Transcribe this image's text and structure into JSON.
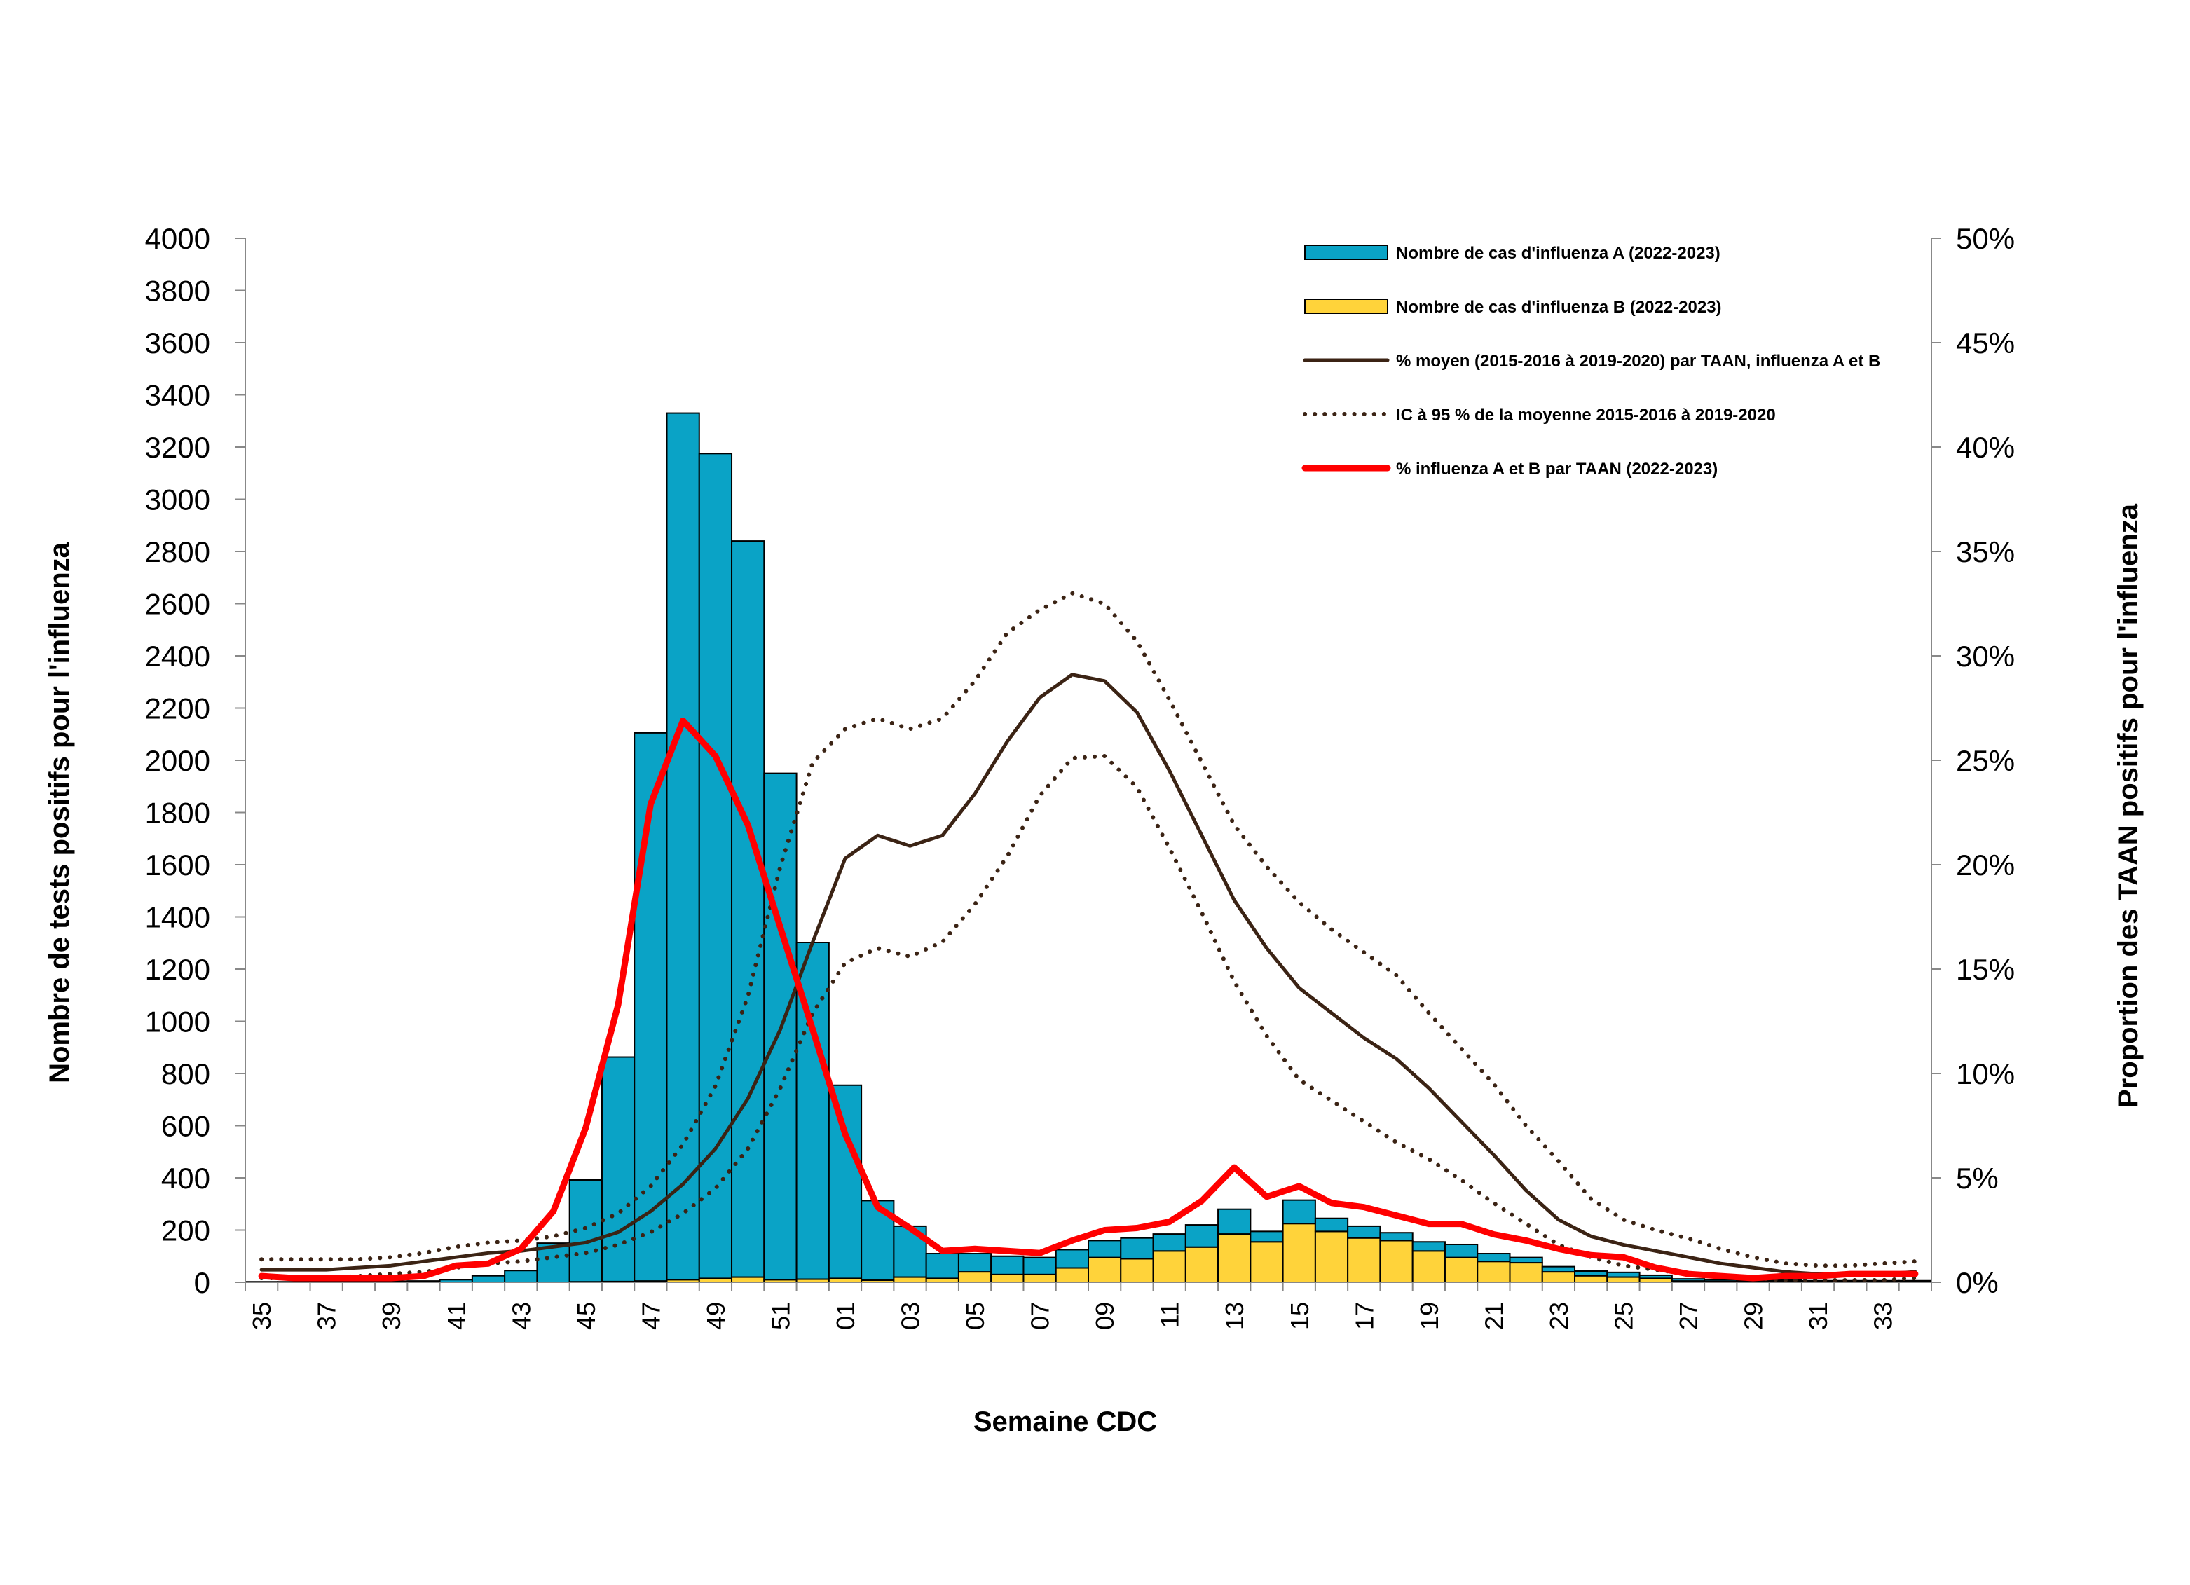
{
  "chart_data": {
    "type": "bar",
    "xlabel": "Semaine CDC",
    "ylabel": "Nombre de tests positifs pour l'influenza",
    "y2label": "Proportion des TAAN positifs pour l'influenza",
    "ylim": [
      0,
      4000
    ],
    "yticks": [
      0,
      200,
      400,
      600,
      800,
      1000,
      1200,
      1400,
      1600,
      1800,
      2000,
      2200,
      2400,
      2600,
      2800,
      3000,
      3200,
      3400,
      3600,
      3800,
      4000
    ],
    "y2lim": [
      0,
      0.5
    ],
    "y2ticks": [
      "0%",
      "5%",
      "10%",
      "15%",
      "20%",
      "25%",
      "30%",
      "35%",
      "40%",
      "45%",
      "50%"
    ],
    "stacked": true,
    "legend_position": "top-right",
    "grid": false,
    "weeks": [
      "35",
      "36",
      "37",
      "38",
      "39",
      "40",
      "41",
      "42",
      "43",
      "44",
      "45",
      "46",
      "47",
      "48",
      "49",
      "50",
      "51",
      "52",
      "01",
      "02",
      "03",
      "04",
      "05",
      "06",
      "07",
      "08",
      "09",
      "10",
      "11",
      "12",
      "13",
      "14",
      "15",
      "16",
      "17",
      "18",
      "19",
      "20",
      "21",
      "22",
      "23",
      "24",
      "25",
      "26",
      "27",
      "28",
      "29",
      "30",
      "31",
      "32",
      "33",
      "34"
    ],
    "week_labels": [
      "35",
      "37",
      "39",
      "41",
      "43",
      "45",
      "47",
      "49",
      "51",
      "01",
      "03",
      "05",
      "07",
      "09",
      "11",
      "13",
      "15",
      "17",
      "19",
      "21",
      "23",
      "25",
      "27",
      "29",
      "31",
      "33"
    ],
    "bar_series": [
      {
        "name": "Nombre de cas d'influenza A (2022-2023)",
        "color": "#0aa3c6",
        "values": [
          2,
          2,
          3,
          3,
          4,
          5,
          10,
          25,
          45,
          150,
          390,
          860,
          2100,
          3320,
          3160,
          2820,
          1940,
          1290,
          740,
          305,
          195,
          95,
          70,
          70,
          65,
          70,
          65,
          80,
          65,
          85,
          95,
          40,
          90,
          50,
          45,
          30,
          35,
          50,
          30,
          20,
          20,
          18,
          18,
          12,
          8,
          6,
          5,
          5,
          4,
          4,
          4,
          4
        ]
      },
      {
        "name": "Nombre de cas d'influenza B (2022-2023)",
        "color": "#ffd33a",
        "values": [
          0,
          0,
          0,
          0,
          0,
          0,
          0,
          0,
          0,
          0,
          2,
          3,
          5,
          10,
          15,
          20,
          10,
          12,
          15,
          8,
          20,
          15,
          40,
          30,
          30,
          55,
          95,
          90,
          120,
          135,
          185,
          155,
          225,
          195,
          170,
          160,
          120,
          95,
          80,
          75,
          40,
          25,
          20,
          15,
          5,
          4,
          3,
          3,
          2,
          2,
          2,
          2
        ]
      }
    ],
    "line_series": [
      {
        "name": "% moyen (2015-2016 à 2019-2020) par TAAN, influenza A et B",
        "color": "#3b2314",
        "style": "solid",
        "values": [
          0.006,
          0.006,
          0.006,
          0.007,
          0.008,
          0.01,
          0.012,
          0.014,
          0.015,
          0.017,
          0.019,
          0.024,
          0.034,
          0.047,
          0.064,
          0.088,
          0.121,
          0.163,
          0.203,
          0.214,
          0.209,
          0.214,
          0.234,
          0.259,
          0.28,
          0.291,
          0.288,
          0.273,
          0.245,
          0.214,
          0.183,
          0.16,
          0.141,
          0.129,
          0.117,
          0.107,
          0.093,
          0.077,
          0.061,
          0.044,
          0.03,
          0.022,
          0.018,
          0.015,
          0.012,
          0.009,
          0.007,
          0.005,
          0.004,
          0.004,
          0.004,
          0.005
        ]
      },
      {
        "name": "IC à 95 % de la moyenne 2015-2016 à 2019-2020 (limite supérieure)",
        "color": "#3b2314",
        "style": "dotted",
        "values": [
          0.011,
          0.011,
          0.011,
          0.011,
          0.012,
          0.014,
          0.017,
          0.019,
          0.02,
          0.022,
          0.026,
          0.033,
          0.046,
          0.066,
          0.094,
          0.137,
          0.199,
          0.249,
          0.265,
          0.27,
          0.265,
          0.27,
          0.288,
          0.311,
          0.322,
          0.33,
          0.325,
          0.307,
          0.279,
          0.249,
          0.219,
          0.199,
          0.182,
          0.169,
          0.158,
          0.147,
          0.129,
          0.112,
          0.095,
          0.075,
          0.058,
          0.04,
          0.03,
          0.025,
          0.021,
          0.016,
          0.012,
          0.009,
          0.008,
          0.008,
          0.009,
          0.01
        ]
      },
      {
        "name": "IC à 95 % de la moyenne 2015-2016 à 2019-2020 (limite inférieure)",
        "color": "#3b2314",
        "style": "dotted",
        "values": [
          0.002,
          0.002,
          0.002,
          0.003,
          0.004,
          0.005,
          0.007,
          0.009,
          0.01,
          0.012,
          0.014,
          0.018,
          0.024,
          0.033,
          0.045,
          0.064,
          0.093,
          0.129,
          0.153,
          0.16,
          0.156,
          0.163,
          0.181,
          0.204,
          0.233,
          0.251,
          0.252,
          0.237,
          0.208,
          0.177,
          0.144,
          0.118,
          0.097,
          0.087,
          0.077,
          0.067,
          0.059,
          0.049,
          0.038,
          0.028,
          0.018,
          0.012,
          0.008,
          0.006,
          0.004,
          0.003,
          0.002,
          0.001,
          0.001,
          0.001,
          0.001,
          0.002
        ]
      },
      {
        "name": "% influenza A et B par TAAN (2022-2023)",
        "color": "#ff0000",
        "style": "solid-bold",
        "values": [
          0.003,
          0.002,
          0.002,
          0.002,
          0.002,
          0.003,
          0.008,
          0.009,
          0.016,
          0.034,
          0.074,
          0.133,
          0.229,
          0.269,
          0.252,
          0.219,
          0.17,
          0.121,
          0.071,
          0.036,
          0.026,
          0.015,
          0.016,
          0.015,
          0.014,
          0.02,
          0.025,
          0.026,
          0.029,
          0.039,
          0.055,
          0.041,
          0.046,
          0.038,
          0.036,
          0.032,
          0.028,
          0.028,
          0.023,
          0.02,
          0.016,
          0.013,
          0.012,
          0.007,
          0.004,
          0.003,
          0.002,
          0.003,
          0.003,
          0.004,
          0.004,
          0.004
        ]
      }
    ],
    "legend": [
      {
        "label": "Nombre de cas d'influenza A (2022-2023)",
        "kind": "box",
        "color": "#0aa3c6"
      },
      {
        "label": "Nombre de cas d'influenza B (2022-2023)",
        "kind": "box",
        "color": "#ffd33a"
      },
      {
        "label": "% moyen (2015-2016 à 2019-2020) par TAAN, influenza A et B",
        "kind": "line",
        "color": "#3b2314"
      },
      {
        "label": "IC à 95 % de la moyenne 2015-2016 à 2019-2020",
        "kind": "dotted",
        "color": "#3b2314"
      },
      {
        "label": "% influenza A et B par TAAN (2022-2023)",
        "kind": "line-bold",
        "color": "#ff0000"
      }
    ]
  }
}
